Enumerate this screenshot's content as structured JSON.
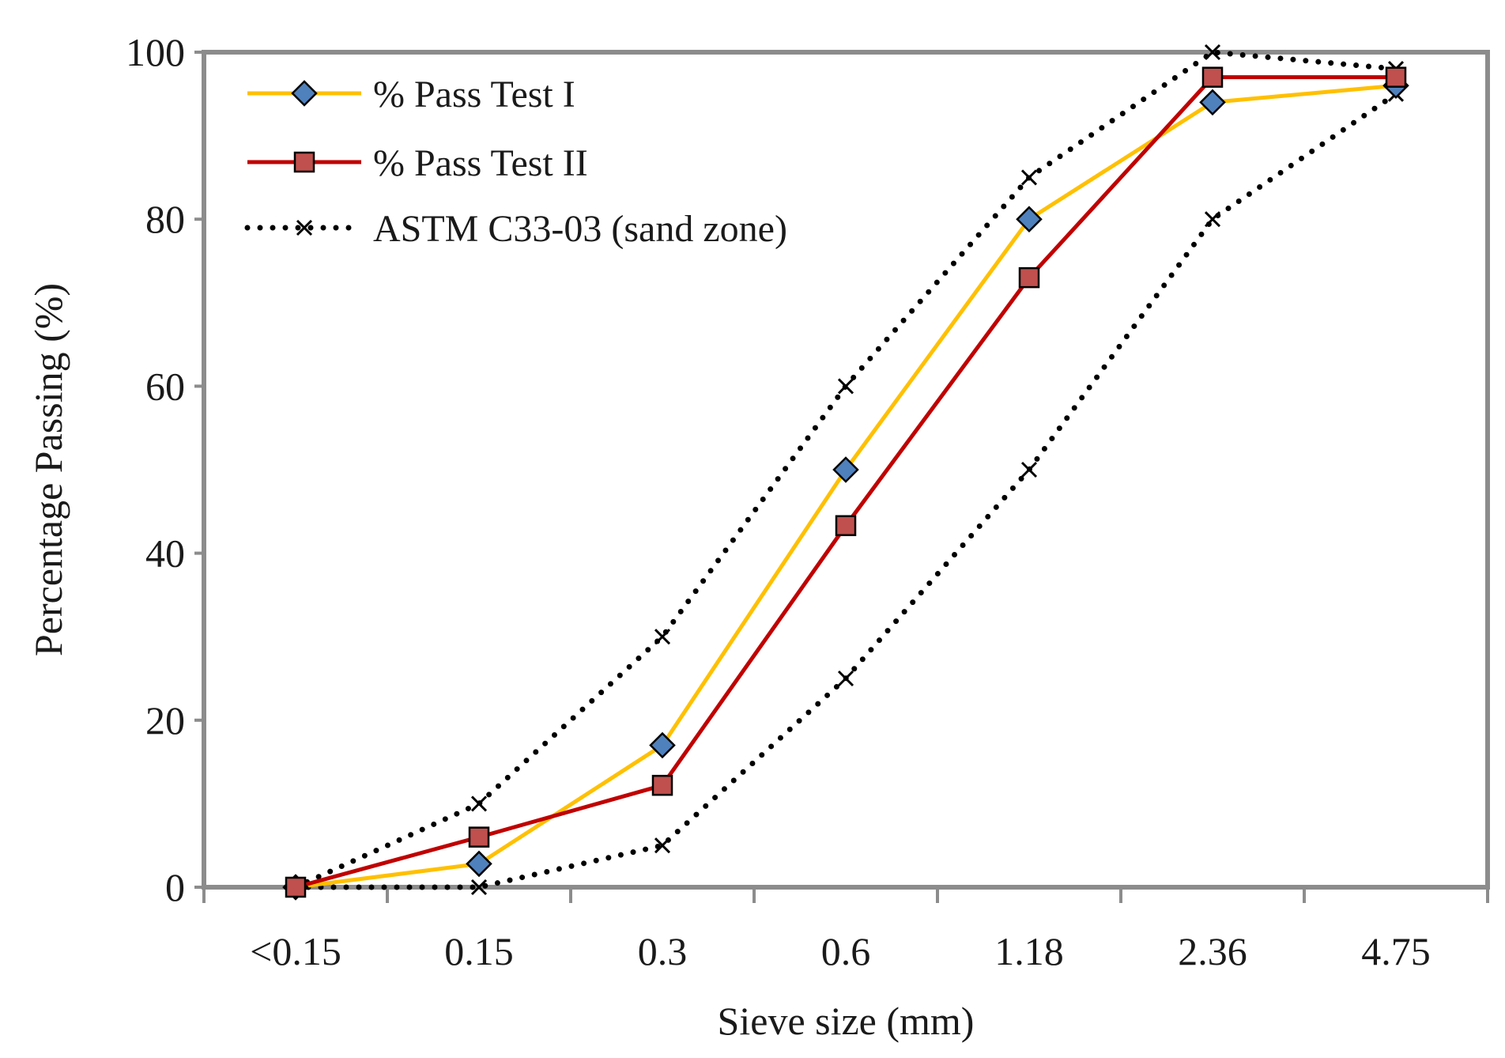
{
  "chart_data": {
    "type": "line",
    "title": "",
    "xlabel": "Sieve size (mm)",
    "ylabel": "Percentage Passing (%)",
    "categories": [
      "<0.15",
      "0.15",
      "0.3",
      "0.6",
      "1.18",
      "2.36",
      "4.75"
    ],
    "ylim": [
      0,
      100
    ],
    "yticks": [
      0,
      20,
      40,
      60,
      80,
      100
    ],
    "grid": false,
    "legend_position": "top-left",
    "series": [
      {
        "name": "% Pass Test I",
        "values": [
          0,
          2.8,
          17,
          50,
          80,
          94,
          96
        ],
        "line_color": "#FFC000",
        "marker": "diamond",
        "marker_color": "#4F81BD",
        "line_style": "solid"
      },
      {
        "name": "% Pass Test II",
        "values": [
          0,
          6,
          12.2,
          43.3,
          73,
          97,
          97
        ],
        "line_color": "#C00000",
        "marker": "square",
        "marker_color": "#C0504D",
        "line_style": "solid"
      },
      {
        "name": "ASTM C33-03 (sand zone)",
        "upper": [
          0,
          10,
          30,
          60,
          85,
          100,
          98
        ],
        "lower": [
          0,
          0,
          5,
          25,
          50,
          80,
          95
        ],
        "line_color": "#000000",
        "marker": "x",
        "line_style": "dotted"
      }
    ]
  }
}
